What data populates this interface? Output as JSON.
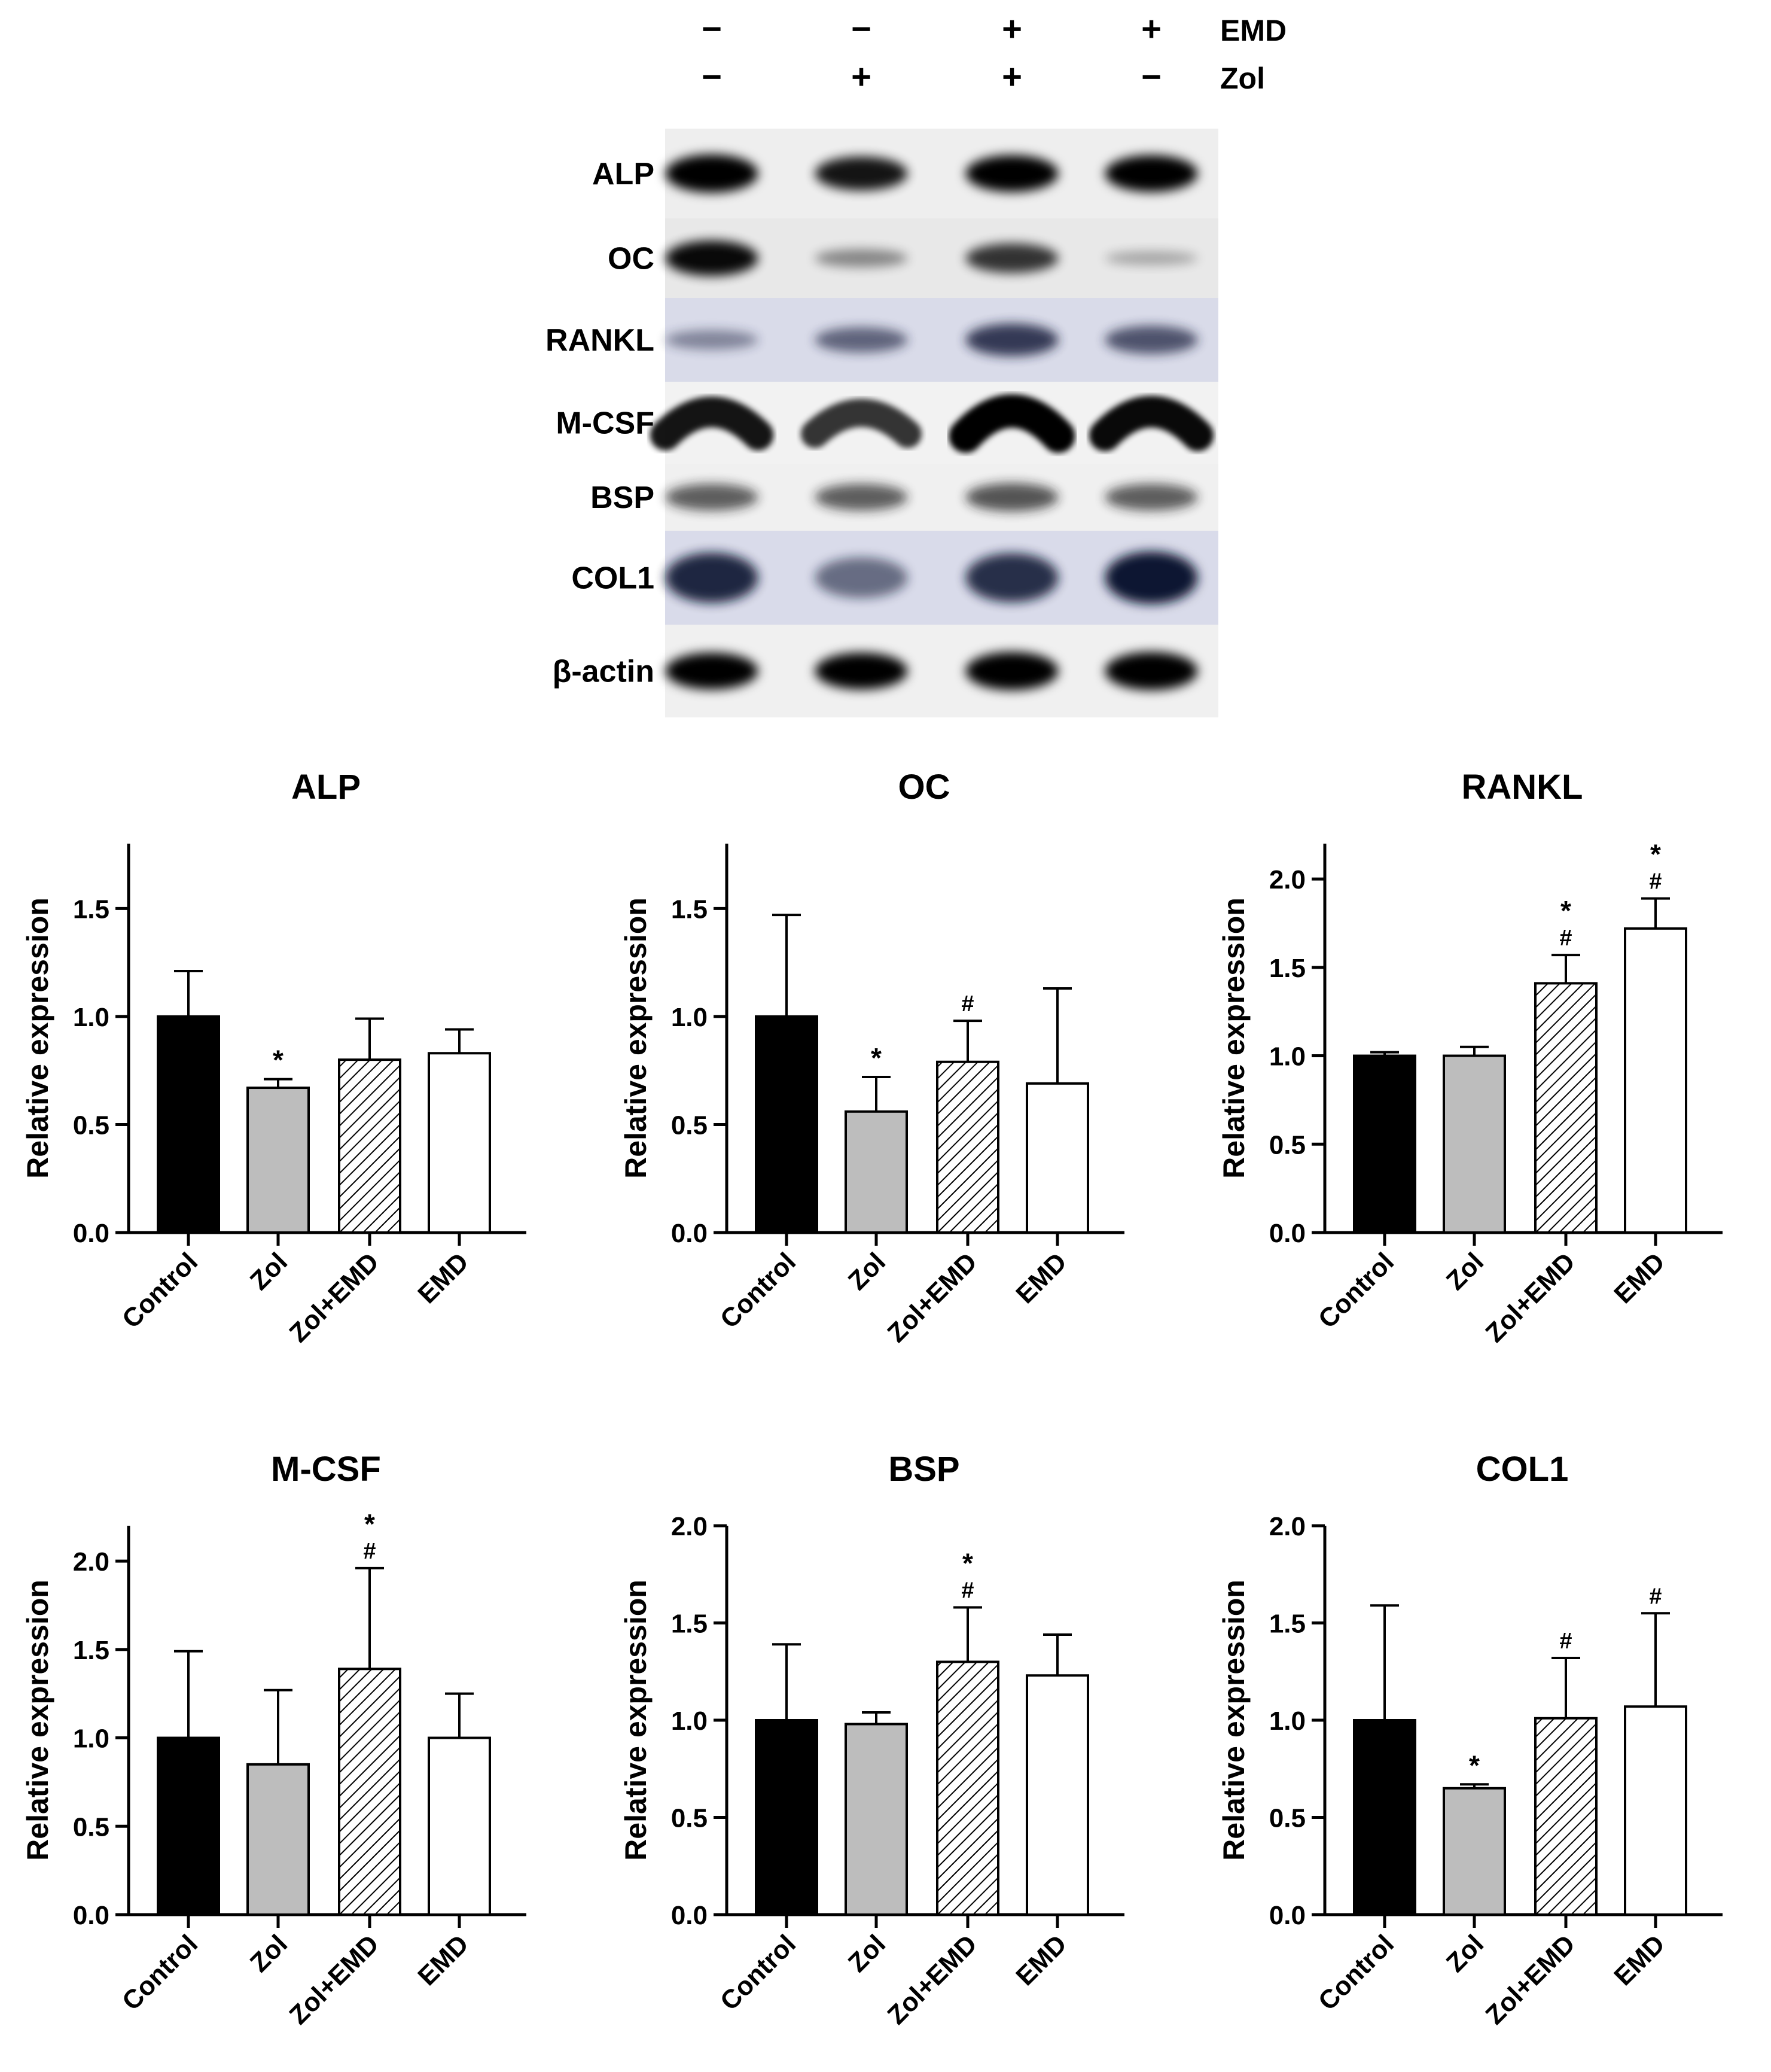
{
  "blot": {
    "header_rows": [
      {
        "label": "EMD",
        "signs": [
          "−",
          "−",
          "+",
          "+"
        ]
      },
      {
        "label": "Zol",
        "signs": [
          "−",
          "+",
          "+",
          "−"
        ]
      }
    ],
    "bands": [
      {
        "label": "ALP",
        "background": "#eeeeee",
        "color": "#000000",
        "intensity": [
          1.0,
          0.85,
          0.95,
          0.95
        ],
        "shape": "flat"
      },
      {
        "label": "OC",
        "background": "#e8e8e8",
        "color": "#050505",
        "intensity": [
          0.9,
          0.3,
          0.7,
          0.15
        ],
        "shape": "flat"
      },
      {
        "label": "RANKL",
        "background": "#d9dbe9",
        "color": "#1e2140",
        "intensity": [
          0.35,
          0.55,
          0.8,
          0.65
        ],
        "shape": "flat"
      },
      {
        "label": "M-CSF",
        "background": "#f2f2f2",
        "color": "#000000",
        "intensity": [
          0.85,
          0.7,
          1.0,
          0.9
        ],
        "shape": "arc"
      },
      {
        "label": "BSP",
        "background": "#f0f0f0",
        "color": "#1a1a1a",
        "intensity": [
          0.6,
          0.6,
          0.65,
          0.6
        ],
        "shape": "flat"
      },
      {
        "label": "COL1",
        "background": "#d9dbea",
        "color": "#0f1230",
        "intensity": [
          0.85,
          0.45,
          0.8,
          0.95
        ],
        "shape": "blob"
      },
      {
        "label": "β-actin",
        "background": "#f0f0f0",
        "color": "#000000",
        "intensity": [
          0.95,
          0.95,
          1.0,
          1.0
        ],
        "shape": "flat"
      }
    ]
  },
  "colors": {
    "control": "#000000",
    "zol": "#bdbdbd",
    "zol_emd": "hatched",
    "emd": "#ffffff",
    "axis": "#000000"
  },
  "chart_data": [
    {
      "type": "bar",
      "title": "ALP",
      "xlabel": "",
      "ylabel": "Relative  expression",
      "categories": [
        "Control",
        "Zol",
        "Zol+EMD",
        "EMD"
      ],
      "values": [
        1.0,
        0.67,
        0.8,
        0.83
      ],
      "errors": [
        0.21,
        0.04,
        0.19,
        0.11
      ],
      "annotations": [
        [],
        [
          "*"
        ],
        [],
        []
      ],
      "ylim": [
        0,
        1.8
      ],
      "yticks": [
        "0.0",
        "0.5",
        "1.0",
        "1.5"
      ]
    },
    {
      "type": "bar",
      "title": "OC",
      "xlabel": "",
      "ylabel": "Relative  expression",
      "categories": [
        "Control",
        "Zol",
        "Zol+EMD",
        "EMD"
      ],
      "values": [
        1.0,
        0.56,
        0.79,
        0.69
      ],
      "errors": [
        0.47,
        0.16,
        0.19,
        0.44
      ],
      "annotations": [
        [],
        [
          "*"
        ],
        [
          "#"
        ],
        []
      ],
      "ylim": [
        0,
        1.8
      ],
      "yticks": [
        "0.0",
        "0.5",
        "1.0",
        "1.5"
      ]
    },
    {
      "type": "bar",
      "title": "RANKL",
      "xlabel": "",
      "ylabel": "Relative  expression",
      "categories": [
        "Control",
        "Zol",
        "Zol+EMD",
        "EMD"
      ],
      "values": [
        1.0,
        1.0,
        1.41,
        1.72
      ],
      "errors": [
        0.02,
        0.05,
        0.16,
        0.17
      ],
      "annotations": [
        [],
        [],
        [
          "#",
          "*"
        ],
        [
          "#",
          "*"
        ]
      ],
      "ylim": [
        0,
        2.2
      ],
      "yticks": [
        "0.0",
        "0.5",
        "1.0",
        "1.5",
        "2.0"
      ]
    },
    {
      "type": "bar",
      "title": "M-CSF",
      "xlabel": "",
      "ylabel": "Relative  expression",
      "categories": [
        "Control",
        "Zol",
        "Zol+EMD",
        "EMD"
      ],
      "values": [
        1.0,
        0.85,
        1.39,
        1.0
      ],
      "errors": [
        0.49,
        0.42,
        0.57,
        0.25
      ],
      "annotations": [
        [],
        [],
        [
          "#",
          "*"
        ],
        []
      ],
      "ylim": [
        0,
        2.2
      ],
      "yticks": [
        "0.0",
        "0.5",
        "1.0",
        "1.5",
        "2.0"
      ]
    },
    {
      "type": "bar",
      "title": "BSP",
      "xlabel": "",
      "ylabel": "Relative  expression",
      "categories": [
        "Control",
        "Zol",
        "Zol+EMD",
        "EMD"
      ],
      "values": [
        1.0,
        0.98,
        1.3,
        1.23
      ],
      "errors": [
        0.39,
        0.06,
        0.28,
        0.21
      ],
      "annotations": [
        [],
        [],
        [
          "#",
          "*"
        ],
        []
      ],
      "ylim": [
        0,
        2.0
      ],
      "yticks": [
        "0.0",
        "0.5",
        "1.0",
        "1.5",
        "2.0"
      ]
    },
    {
      "type": "bar",
      "title": "COL1",
      "xlabel": "",
      "ylabel": "Relative  expression",
      "categories": [
        "Control",
        "Zol",
        "Zol+EMD",
        "EMD"
      ],
      "values": [
        1.0,
        0.65,
        1.01,
        1.07
      ],
      "errors": [
        0.59,
        0.02,
        0.31,
        0.48
      ],
      "annotations": [
        [],
        [
          "*"
        ],
        [
          "#"
        ],
        [
          "#"
        ]
      ],
      "ylim": [
        0,
        2.0
      ],
      "yticks": [
        "0.0",
        "0.5",
        "1.0",
        "1.5",
        "2.0"
      ]
    }
  ]
}
